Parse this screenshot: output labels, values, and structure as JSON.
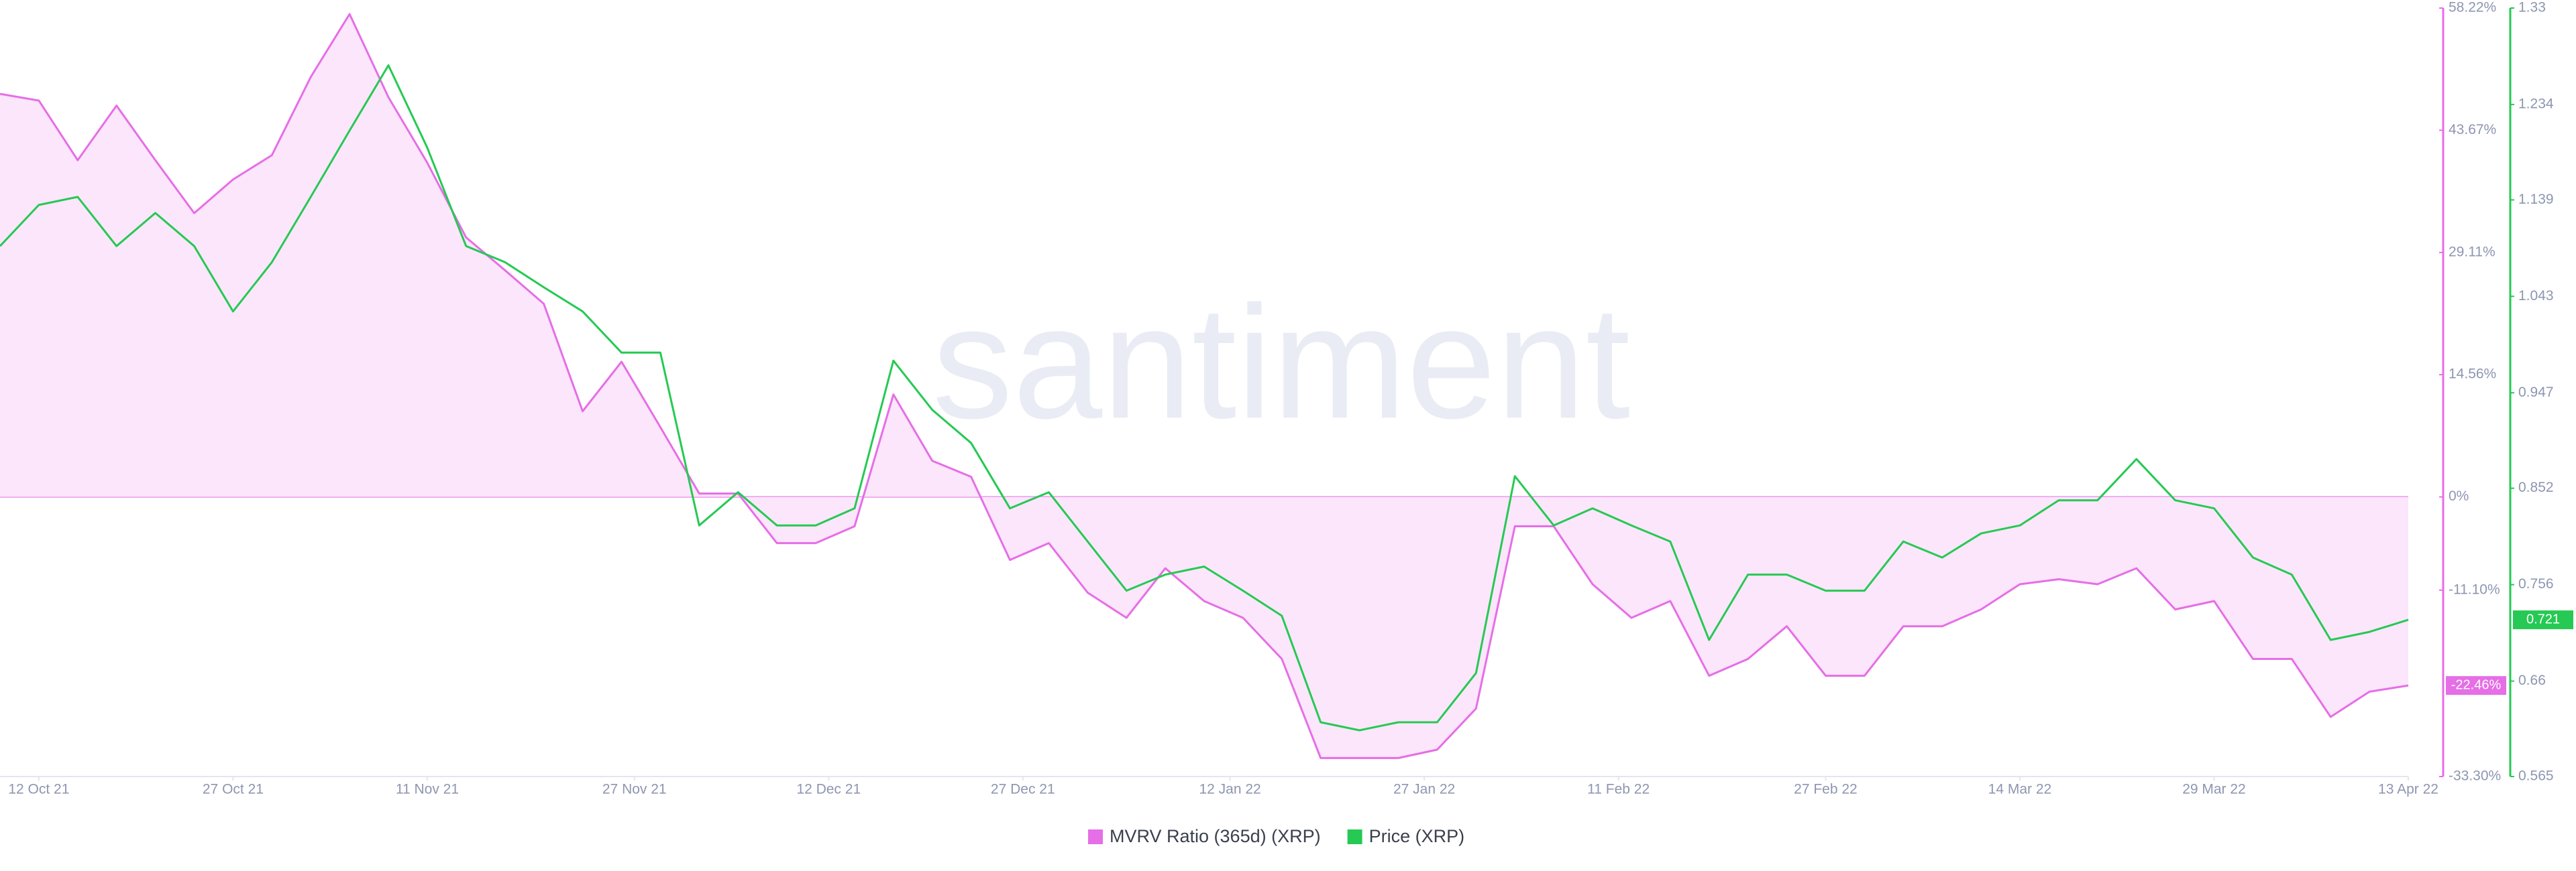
{
  "chart_data": {
    "type": "line",
    "watermark": "santiment",
    "x": [
      "2021-10-09",
      "2021-10-12",
      "2021-10-15",
      "2021-10-18",
      "2021-10-21",
      "2021-10-24",
      "2021-10-27",
      "2021-10-30",
      "2021-11-02",
      "2021-11-05",
      "2021-11-08",
      "2021-11-11",
      "2021-11-14",
      "2021-11-17",
      "2021-11-20",
      "2021-11-23",
      "2021-11-26",
      "2021-11-29",
      "2021-12-02",
      "2021-12-05",
      "2021-12-08",
      "2021-12-11",
      "2021-12-14",
      "2021-12-17",
      "2021-12-20",
      "2021-12-23",
      "2021-12-26",
      "2021-12-29",
      "2022-01-01",
      "2022-01-04",
      "2022-01-07",
      "2022-01-10",
      "2022-01-13",
      "2022-01-16",
      "2022-01-19",
      "2022-01-22",
      "2022-01-25",
      "2022-01-28",
      "2022-01-31",
      "2022-02-03",
      "2022-02-06",
      "2022-02-09",
      "2022-02-12",
      "2022-02-15",
      "2022-02-18",
      "2022-02-21",
      "2022-02-24",
      "2022-02-27",
      "2022-03-02",
      "2022-03-05",
      "2022-03-08",
      "2022-03-11",
      "2022-03-14",
      "2022-03-17",
      "2022-03-20",
      "2022-03-23",
      "2022-03-26",
      "2022-03-29",
      "2022-04-01",
      "2022-04-04",
      "2022-04-07",
      "2022-04-10",
      "2022-04-13"
    ],
    "xlim": [
      "2021-10-09",
      "2022-04-13"
    ],
    "xticks": [
      {
        "value": "2021-10-12",
        "label": "12 Oct 21"
      },
      {
        "value": "2021-10-27",
        "label": "27 Oct 21"
      },
      {
        "value": "2021-11-11",
        "label": "11 Nov 21"
      },
      {
        "value": "2021-11-27",
        "label": "27 Nov 21"
      },
      {
        "value": "2021-12-12",
        "label": "12 Dec 21"
      },
      {
        "value": "2021-12-27",
        "label": "27 Dec 21"
      },
      {
        "value": "2022-01-12",
        "label": "12 Jan 22"
      },
      {
        "value": "2022-01-27",
        "label": "27 Jan 22"
      },
      {
        "value": "2022-02-11",
        "label": "11 Feb 22"
      },
      {
        "value": "2022-02-27",
        "label": "27 Feb 22"
      },
      {
        "value": "2022-03-14",
        "label": "14 Mar 22"
      },
      {
        "value": "2022-03-29",
        "label": "29 Mar 22"
      },
      {
        "value": "2022-04-13",
        "label": "13 Apr 22"
      }
    ],
    "ylim": [
      -33.3,
      58.22
    ],
    "yticks": [
      {
        "value": 58.22,
        "label": "58.22%"
      },
      {
        "value": 43.67,
        "label": "43.67%"
      },
      {
        "value": 29.11,
        "label": "29.11%"
      },
      {
        "value": 14.56,
        "label": "14.56%"
      },
      {
        "value": 0,
        "label": "0%"
      },
      {
        "value": -11.1,
        "label": "-11.10%"
      },
      {
        "value": -33.3,
        "label": "-33.30%"
      }
    ],
    "y2lim": [
      0.565,
      1.33
    ],
    "y2ticks": [
      1.33,
      1.234,
      1.139,
      1.043,
      0.947,
      0.852,
      0.756,
      0.66,
      0.565
    ],
    "zero_line": true,
    "series": [
      {
        "name": "MVRV Ratio (365d) (XRP)",
        "color": "#e66ee6",
        "fill": "#fbe6fb",
        "last_label": "-22.46%",
        "values": [
          48.0,
          47.2,
          40.1,
          46.6,
          40.1,
          33.8,
          37.8,
          40.7,
          50.0,
          57.5,
          47.6,
          39.8,
          30.9,
          27.0,
          23.0,
          10.2,
          16.1,
          8.3,
          0.4,
          0.4,
          -5.5,
          -5.5,
          -3.5,
          12.2,
          4.3,
          2.4,
          -7.5,
          -5.5,
          -11.4,
          -14.4,
          -8.5,
          -12.4,
          -14.4,
          -19.3,
          -31.1,
          -31.1,
          -31.1,
          -30.1,
          -25.2,
          -3.5,
          -3.5,
          -10.4,
          -14.4,
          -12.4,
          -21.3,
          -19.3,
          -15.4,
          -21.3,
          -21.3,
          -15.4,
          -15.4,
          -13.4,
          -10.4,
          -9.8,
          -10.4,
          -8.5,
          -13.4,
          -12.4,
          -19.3,
          -19.3,
          -26.2,
          -23.2,
          -22.46
        ]
      },
      {
        "name": "Price (XRP)",
        "color": "#26c953",
        "axis": "y2",
        "last_label": "0.721",
        "values": [
          1.093,
          1.134,
          1.142,
          1.093,
          1.126,
          1.093,
          1.028,
          1.077,
          1.142,
          1.208,
          1.273,
          1.191,
          1.093,
          1.077,
          1.052,
          1.028,
          0.987,
          0.987,
          0.815,
          0.848,
          0.815,
          0.815,
          0.832,
          0.979,
          0.93,
          0.897,
          0.832,
          0.848,
          0.799,
          0.75,
          0.766,
          0.774,
          0.75,
          0.725,
          0.619,
          0.611,
          0.619,
          0.619,
          0.668,
          0.864,
          0.815,
          0.832,
          0.815,
          0.799,
          0.701,
          0.766,
          0.766,
          0.75,
          0.75,
          0.799,
          0.783,
          0.807,
          0.815,
          0.84,
          0.84,
          0.881,
          0.84,
          0.832,
          0.783,
          0.766,
          0.701,
          0.709,
          0.721
        ]
      }
    ]
  }
}
